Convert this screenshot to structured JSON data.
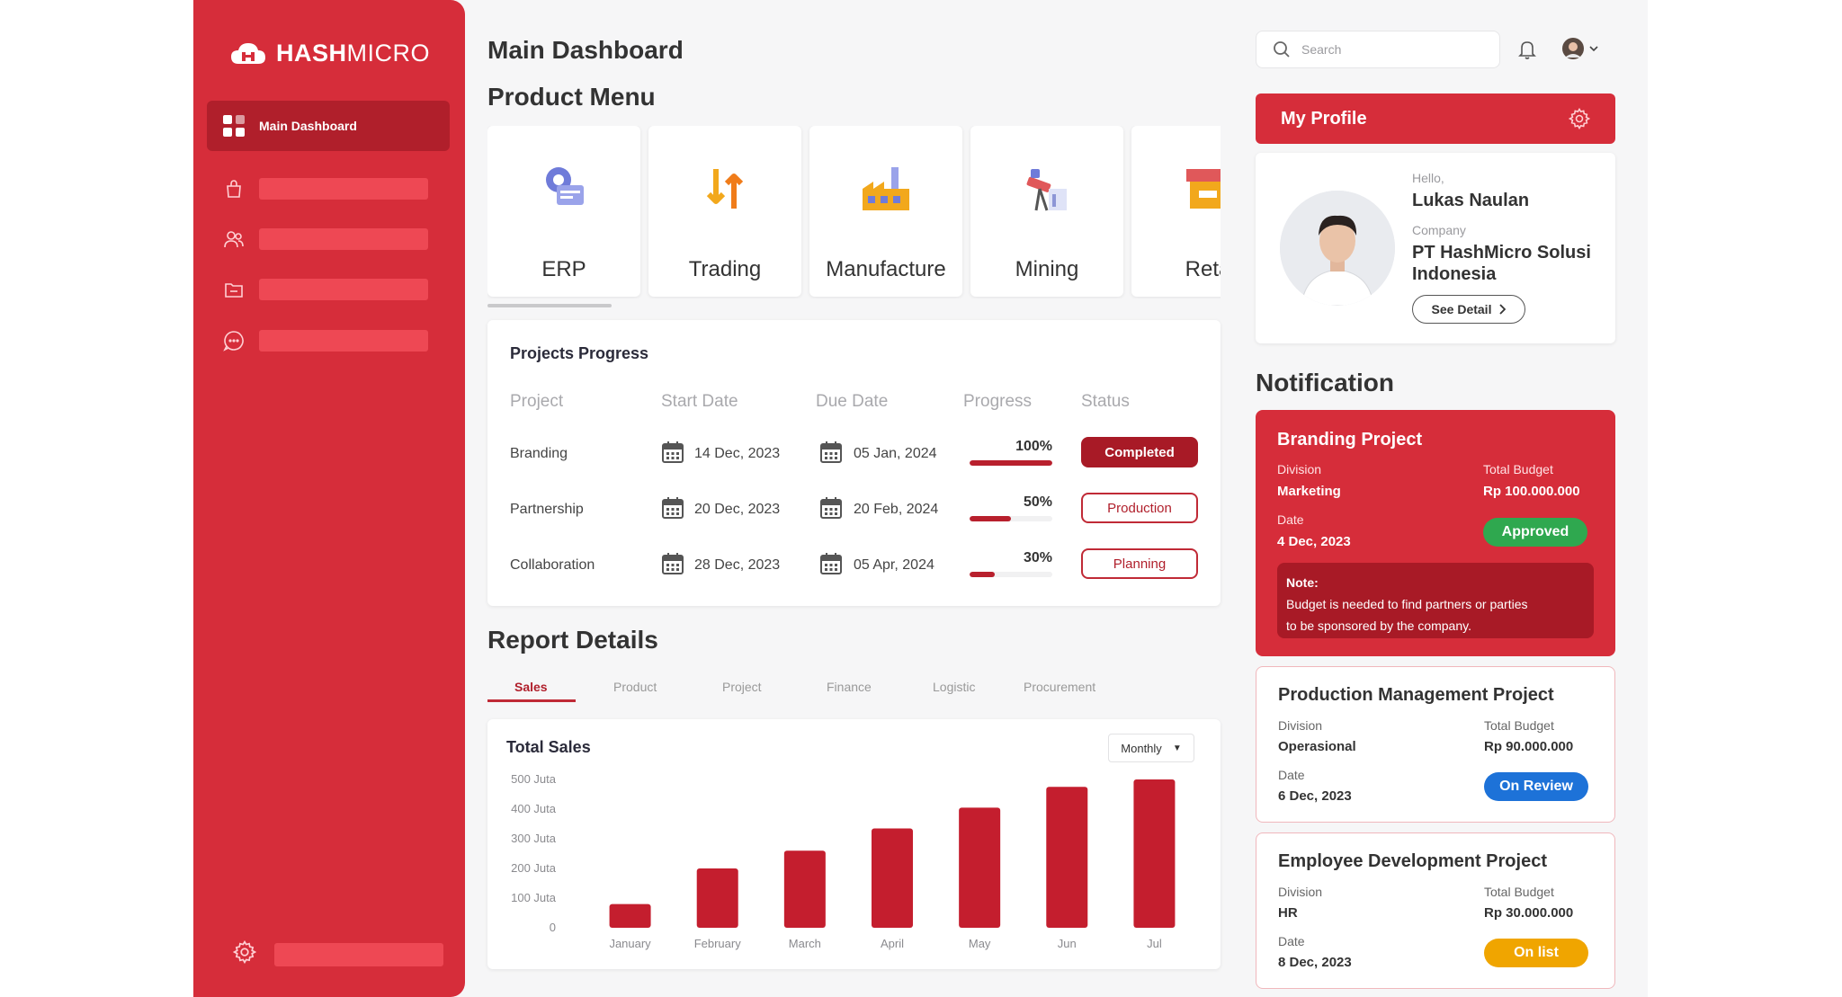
{
  "brand": {
    "name_a": "HASH",
    "name_b": "MICRO"
  },
  "sidebar": {
    "active_item": "Main Dashboard",
    "items": [
      {
        "icon": "shopping-bag-icon"
      },
      {
        "icon": "users-icon"
      },
      {
        "icon": "folder-icon"
      },
      {
        "icon": "chat-icon"
      }
    ],
    "footer_icon": "gear-icon"
  },
  "header": {
    "title": "Main Dashboard",
    "search_placeholder": "Search"
  },
  "product_menu": {
    "title": "Product Menu",
    "items": [
      {
        "label": "ERP",
        "icon": "erp-icon"
      },
      {
        "label": "Trading",
        "icon": "trading-icon"
      },
      {
        "label": "Manufacture",
        "icon": "manufacture-icon"
      },
      {
        "label": "Mining",
        "icon": "mining-icon"
      },
      {
        "label": "Reta",
        "icon": "retail-icon"
      }
    ]
  },
  "projects": {
    "title": "Projects Progress",
    "columns": [
      "Project",
      "Start Date",
      "Due Date",
      "Progress",
      "Status"
    ],
    "rows": [
      {
        "project": "Branding",
        "start": "14 Dec, 2023",
        "due": "05 Jan, 2024",
        "progress": "100%",
        "progress_value": 1.0,
        "status": "Completed"
      },
      {
        "project": "Partnership",
        "start": "20 Dec, 2023",
        "due": "20 Feb, 2024",
        "progress": "50%",
        "progress_value": 0.5,
        "status": "Production"
      },
      {
        "project": "Collaboration",
        "start": "28 Dec, 2023",
        "due": "05 Apr, 2024",
        "progress": "30%",
        "progress_value": 0.3,
        "status": "Planning"
      }
    ]
  },
  "report": {
    "title": "Report Details",
    "tabs": [
      "Sales",
      "Product",
      "Project",
      "Finance",
      "Logistic",
      "Procurement"
    ],
    "active_tab": "Sales",
    "chart_title": "Total Sales",
    "period": "Monthly"
  },
  "chart_data": {
    "type": "bar",
    "categories": [
      "January",
      "February",
      "March",
      "April",
      "May",
      "Jun",
      "Jul"
    ],
    "values": [
      80,
      200,
      260,
      335,
      405,
      475,
      500
    ],
    "yticks": [
      "500 Juta",
      "400 Juta",
      "300 Juta",
      "200 Juta",
      "100 Juta",
      "0"
    ],
    "ylim": [
      0,
      500
    ],
    "color": "#c41e2e",
    "grid": false
  },
  "profile": {
    "title": "My Profile",
    "greeting": "Hello,",
    "name": "Lukas Naulan",
    "company_label": "Company",
    "company_line1": "PT HashMicro Solusi",
    "company_line2": "Indonesia",
    "see_detail": "See Detail"
  },
  "notifications": {
    "title": "Notification",
    "items": [
      {
        "title": "Branding Project",
        "division_label": "Division",
        "division": "Marketing",
        "budget_label": "Total Budget",
        "budget": "Rp 100.000.000",
        "date_label": "Date",
        "date": "4 Dec, 2023",
        "status": "Approved",
        "status_color": "#2fa84f",
        "note_label": "Note:",
        "note_line1": "Budget is needed to find partners or parties",
        "note_line2": "to be sponsored by the company."
      },
      {
        "title": "Production Management Project",
        "division_label": "Division",
        "division": "Operasional",
        "budget_label": "Total Budget",
        "budget": "Rp 90.000.000",
        "date_label": "Date",
        "date": "6 Dec, 2023",
        "status": "On Review",
        "status_color": "#1d72d8"
      },
      {
        "title": "Employee Development Project",
        "division_label": "Division",
        "division": "HR",
        "budget_label": "Total Budget",
        "budget": "Rp 30.000.000",
        "date_label": "Date",
        "date": "8 Dec, 2023",
        "status": "On list",
        "status_color": "#f0a500"
      }
    ]
  },
  "colors": {
    "brand_red": "#d62d3a",
    "dark_red": "#a81a26",
    "background": "#f6f6f7"
  }
}
